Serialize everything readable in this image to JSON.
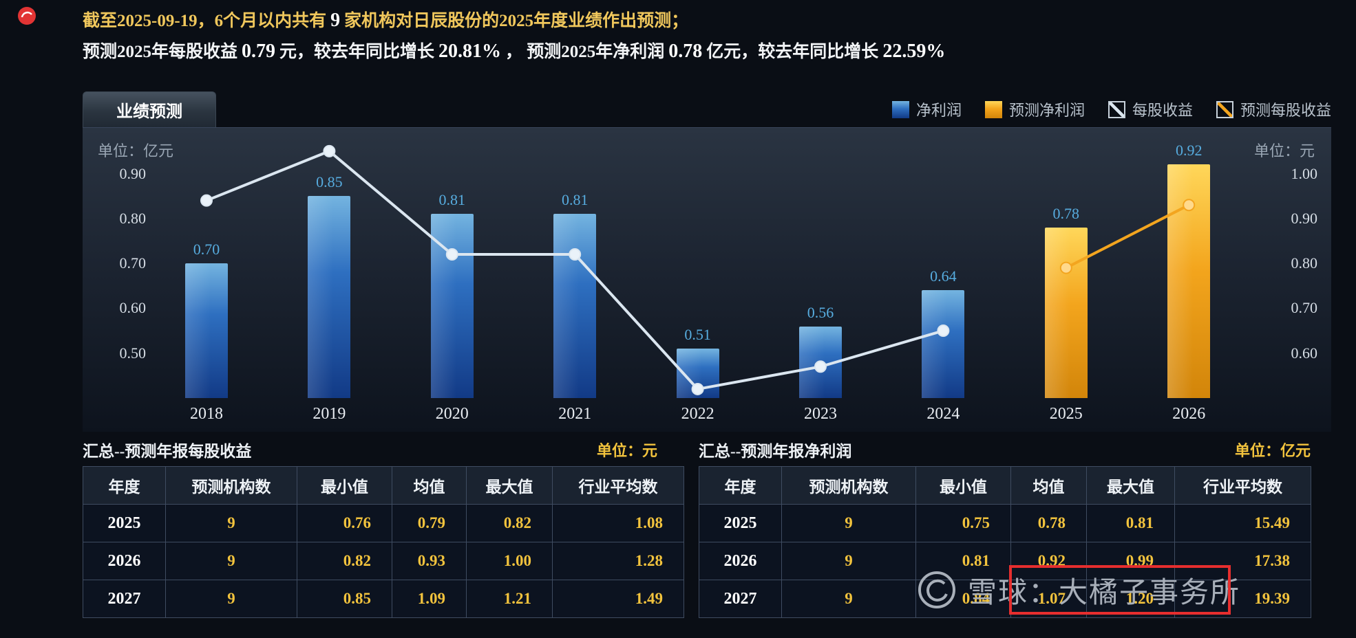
{
  "colors": {
    "page-bg": "#0a0e15",
    "gold": "#f2c33d",
    "header-gold": "#f0c75c",
    "label-blue": "#57ade0",
    "tick-text": "#d7dee6",
    "unit-gray": "#9aa6b4",
    "legend-text": "#b9c3cd",
    "bar-blue-top": "#74b4e0",
    "bar-blue-mid": "#2e6fc0",
    "bar-blue-bot": "#123a86",
    "bar-orange-top": "#ffd75a",
    "bar-orange-mid": "#f3a51d",
    "bar-orange-bot": "#d2850a",
    "line-white": "#dbe6f0",
    "line-orange": "#f3a51f",
    "table-border": "#3f4c61",
    "head-bg": "#1a2330",
    "cell-bg": "#0c1320",
    "red": "#e62e2e"
  },
  "header": {
    "line1": [
      {
        "t": "截至2025-09-19，6个月以内共有",
        "b": 0
      },
      {
        "t": "9",
        "b": 1
      },
      {
        "t": "家机构对日辰股份的2025年度业绩作出预测；",
        "b": 0
      }
    ],
    "line2": [
      {
        "t": "预测2025年每股收益",
        "b": 0
      },
      {
        "t": "0.79",
        "b": 1
      },
      {
        "t": "元，较去年同比增长",
        "b": 0
      },
      {
        "t": "20.81%",
        "b": 1
      },
      {
        "t": "， 预测2025年净利润",
        "b": 0
      },
      {
        "t": "0.78",
        "b": 1
      },
      {
        "t": "亿元，较去年同比增长",
        "b": 0
      },
      {
        "t": "22.59%",
        "b": 1
      }
    ]
  },
  "tab": {
    "label": "业绩预测"
  },
  "legend": [
    {
      "label": "净利润",
      "mark": "bar-blue"
    },
    {
      "label": "预测净利润",
      "mark": "bar-orange"
    },
    {
      "label": "每股收益",
      "mark": "line-white"
    },
    {
      "label": "预测每股收益",
      "mark": "line-orange"
    }
  ],
  "chart_data": {
    "type": "bar+line",
    "categories": [
      "2018",
      "2019",
      "2020",
      "2021",
      "2022",
      "2023",
      "2024",
      "2025",
      "2026"
    ],
    "left_axis": {
      "unit_label": "单位：亿元",
      "min": 0.4,
      "max": 0.97,
      "ticks": [
        "0.90",
        "0.80",
        "0.70",
        "0.60",
        "0.50"
      ]
    },
    "right_axis": {
      "unit_label": "单位：元",
      "min": 0.5,
      "max": 1.07,
      "ticks": [
        "1.00",
        "0.90",
        "0.80",
        "0.70",
        "0.60"
      ]
    },
    "series": [
      {
        "name": "净利润",
        "kind": "bar",
        "barClass": "blue",
        "unit": "亿元",
        "values": [
          0.7,
          0.85,
          0.81,
          0.81,
          0.51,
          0.56,
          0.64,
          null,
          null
        ]
      },
      {
        "name": "预测净利润",
        "kind": "bar",
        "barClass": "orange",
        "unit": "亿元",
        "values": [
          null,
          null,
          null,
          null,
          null,
          null,
          null,
          0.78,
          0.92
        ]
      },
      {
        "name": "每股收益",
        "kind": "line",
        "stroke": "#dbe6f0",
        "dot": "#eaf2f9",
        "unit": "元",
        "values": [
          0.94,
          1.05,
          0.82,
          0.82,
          0.52,
          0.57,
          0.65,
          null,
          null
        ]
      },
      {
        "name": "预测每股收益",
        "kind": "line",
        "stroke": "#f3a51f",
        "dot": "#ffd98c",
        "unit": "元",
        "values": [
          null,
          null,
          null,
          null,
          null,
          null,
          null,
          0.79,
          0.93
        ]
      }
    ]
  },
  "tables": [
    {
      "title": "汇总--预测年报每股收益",
      "unit": "单位：元",
      "headers": [
        "年度",
        "预测机构数",
        "最小值",
        "均值",
        "最大值",
        "行业平均数"
      ],
      "rows": [
        [
          "2025",
          "9",
          "0.76",
          "0.79",
          "0.82",
          "1.08"
        ],
        [
          "2026",
          "9",
          "0.82",
          "0.93",
          "1.00",
          "1.28"
        ],
        [
          "2027",
          "9",
          "0.85",
          "1.09",
          "1.21",
          "1.49"
        ]
      ]
    },
    {
      "title": "汇总--预测年报净利润",
      "unit": "单位：亿元",
      "headers": [
        "年度",
        "预测机构数",
        "最小值",
        "均值",
        "最大值",
        "行业平均数"
      ],
      "rows": [
        [
          "2025",
          "9",
          "0.75",
          "0.78",
          "0.81",
          "15.49"
        ],
        [
          "2026",
          "9",
          "0.81",
          "0.92",
          "0.99",
          "17.38"
        ],
        [
          "2027",
          "9",
          "0.84",
          "1.07",
          "1.20",
          "19.39"
        ]
      ]
    }
  ],
  "watermark": {
    "logo": "xueqiu-circle-logo",
    "text": "雪球：大橘子事务所"
  }
}
